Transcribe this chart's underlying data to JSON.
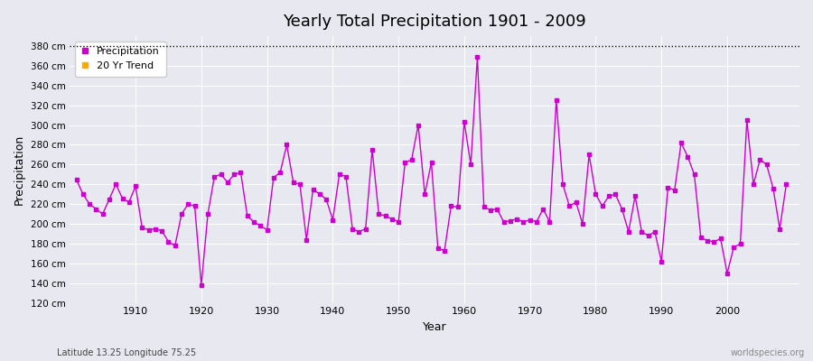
{
  "title": "Yearly Total Precipitation 1901 - 2009",
  "xlabel": "Year",
  "ylabel": "Precipitation",
  "subtitle": "Latitude 13.25 Longitude 75.25",
  "watermark": "worldspecies.org",
  "ylim": [
    120,
    390
  ],
  "background_color": "#e8e8f0",
  "plot_bg_color": "#e8e8f0",
  "line_color": "#cc00cc",
  "trend_color": "#ffaa00",
  "grid_color": "#ffffff",
  "years": [
    1901,
    1902,
    1903,
    1904,
    1905,
    1906,
    1907,
    1908,
    1909,
    1910,
    1911,
    1912,
    1913,
    1914,
    1915,
    1916,
    1917,
    1918,
    1919,
    1920,
    1921,
    1922,
    1923,
    1924,
    1925,
    1926,
    1927,
    1928,
    1929,
    1930,
    1931,
    1932,
    1933,
    1934,
    1935,
    1936,
    1937,
    1938,
    1939,
    1940,
    1941,
    1942,
    1943,
    1944,
    1945,
    1946,
    1947,
    1948,
    1949,
    1950,
    1951,
    1952,
    1953,
    1954,
    1955,
    1956,
    1957,
    1958,
    1959,
    1960,
    1961,
    1962,
    1963,
    1964,
    1965,
    1966,
    1967,
    1968,
    1969,
    1970,
    1971,
    1972,
    1973,
    1974,
    1975,
    1976,
    1977,
    1978,
    1979,
    1980,
    1981,
    1982,
    1983,
    1984,
    1985,
    1986,
    1987,
    1988,
    1989,
    1990,
    1991,
    1992,
    1993,
    1994,
    1995,
    1996,
    1997,
    1998,
    1999,
    2000,
    2001,
    2002,
    2003,
    2004,
    2005,
    2006,
    2007,
    2008,
    2009
  ],
  "precip": [
    245,
    230,
    220,
    215,
    210,
    225,
    240,
    226,
    222,
    238,
    196,
    194,
    195,
    193,
    182,
    178,
    210,
    220,
    218,
    138,
    210,
    248,
    250,
    242,
    250,
    252,
    208,
    202,
    198,
    194,
    247,
    252,
    280,
    242,
    240,
    184,
    235,
    230,
    225,
    204,
    250,
    248,
    195,
    192,
    195,
    275,
    210,
    208,
    205,
    202,
    262,
    265,
    300,
    230,
    262,
    175,
    173,
    218,
    217,
    303,
    260,
    369,
    217,
    214,
    215,
    202,
    203,
    205,
    202,
    204,
    202,
    215,
    202,
    325,
    240,
    218,
    222,
    200,
    270,
    230,
    218,
    228,
    230,
    215,
    192,
    228,
    192,
    188,
    192,
    162,
    237,
    234,
    282,
    268,
    250,
    186,
    183,
    182,
    185,
    150,
    176,
    180,
    305,
    240,
    265,
    260,
    236,
    195,
    240
  ]
}
